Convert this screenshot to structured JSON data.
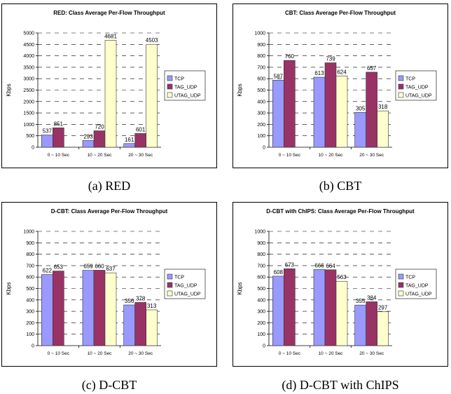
{
  "charts": [
    {
      "caption": "(a) RED",
      "chart_data": {
        "type": "bar",
        "title": "RED: Class Average Per-Flow Throughput",
        "ylabel": "Kbps",
        "ylim": [
          0,
          5000
        ],
        "yticks": [
          0,
          500,
          1000,
          1500,
          2000,
          2500,
          3000,
          3500,
          4000,
          4500,
          5000
        ],
        "categories": [
          "0 ~ 10 Sec",
          "10 ~ 20 Sec",
          "20 ~ 30 Sec"
        ],
        "series": [
          {
            "name": "TCP",
            "color": "#9999ff",
            "values": [
              537,
              293,
              161
            ]
          },
          {
            "name": "TAG_UDP",
            "color": "#993366",
            "values": [
              851,
              720,
              601
            ]
          },
          {
            "name": "UTAG_UDP",
            "color": "#ffffcc",
            "values": [
              null,
              4681,
              4503
            ]
          }
        ],
        "legend": "right",
        "grid": "dashed-horizontal"
      }
    },
    {
      "caption": "(b) CBT",
      "chart_data": {
        "type": "bar",
        "title": "CBT: Class Average Per-Flow Throughput",
        "ylabel": "Kbps",
        "ylim": [
          0,
          1000
        ],
        "yticks": [
          0,
          100,
          200,
          300,
          400,
          500,
          600,
          700,
          800,
          900,
          1000
        ],
        "categories": [
          "0 ~ 10 Sec",
          "10 ~ 20 Sec",
          "20 ~ 30 Sec"
        ],
        "series": [
          {
            "name": "TCP",
            "color": "#9999ff",
            "values": [
              587,
              613,
              305
            ]
          },
          {
            "name": "TAG_UDP",
            "color": "#993366",
            "values": [
              760,
              739,
              657
            ]
          },
          {
            "name": "UTAG_UDP",
            "color": "#ffffcc",
            "values": [
              null,
              624,
              318
            ]
          }
        ],
        "legend": "right",
        "grid": "dashed-horizontal"
      }
    },
    {
      "caption": "(c) D-CBT",
      "chart_data": {
        "type": "bar",
        "title": "D-CBT: Class Average Per-Flow Throughput",
        "ylabel": "Kbps",
        "ylim": [
          0,
          1000
        ],
        "yticks": [
          0,
          100,
          200,
          300,
          400,
          500,
          600,
          700,
          800,
          900,
          1000
        ],
        "categories": [
          "0 ~ 10 Sec",
          "10 ~ 20 Sec",
          "20 ~ 30 Sec"
        ],
        "series": [
          {
            "name": "TCP",
            "color": "#9999ff",
            "values": [
              622,
              659,
              356
            ]
          },
          {
            "name": "TAG_UDP",
            "color": "#993366",
            "values": [
              653,
              660,
              378
            ]
          },
          {
            "name": "UTAG_UDP",
            "color": "#ffffcc",
            "values": [
              null,
              637,
              313
            ]
          }
        ],
        "legend": "right",
        "grid": "dashed-horizontal"
      }
    },
    {
      "caption": "(d) D-CBT with ChIPS",
      "chart_data": {
        "type": "bar",
        "title": "D-CBT with ChIPS: Class Average Per-Flow Throughput",
        "ylabel": "Kbps",
        "ylim": [
          0,
          1000
        ],
        "yticks": [
          0,
          100,
          200,
          300,
          400,
          500,
          600,
          700,
          800,
          900,
          1000
        ],
        "categories": [
          "0 ~ 10 Sec",
          "10 ~ 20 Sec",
          "20 ~ 30 Sec"
        ],
        "series": [
          {
            "name": "TCP",
            "color": "#9999ff",
            "values": [
              608,
              666,
              355
            ]
          },
          {
            "name": "TAG_UDP",
            "color": "#993366",
            "values": [
              673,
              664,
              384
            ]
          },
          {
            "name": "UTAG_UDP",
            "color": "#ffffcc",
            "values": [
              null,
              563,
              297
            ]
          }
        ],
        "legend": "right",
        "grid": "dashed-horizontal"
      }
    }
  ]
}
